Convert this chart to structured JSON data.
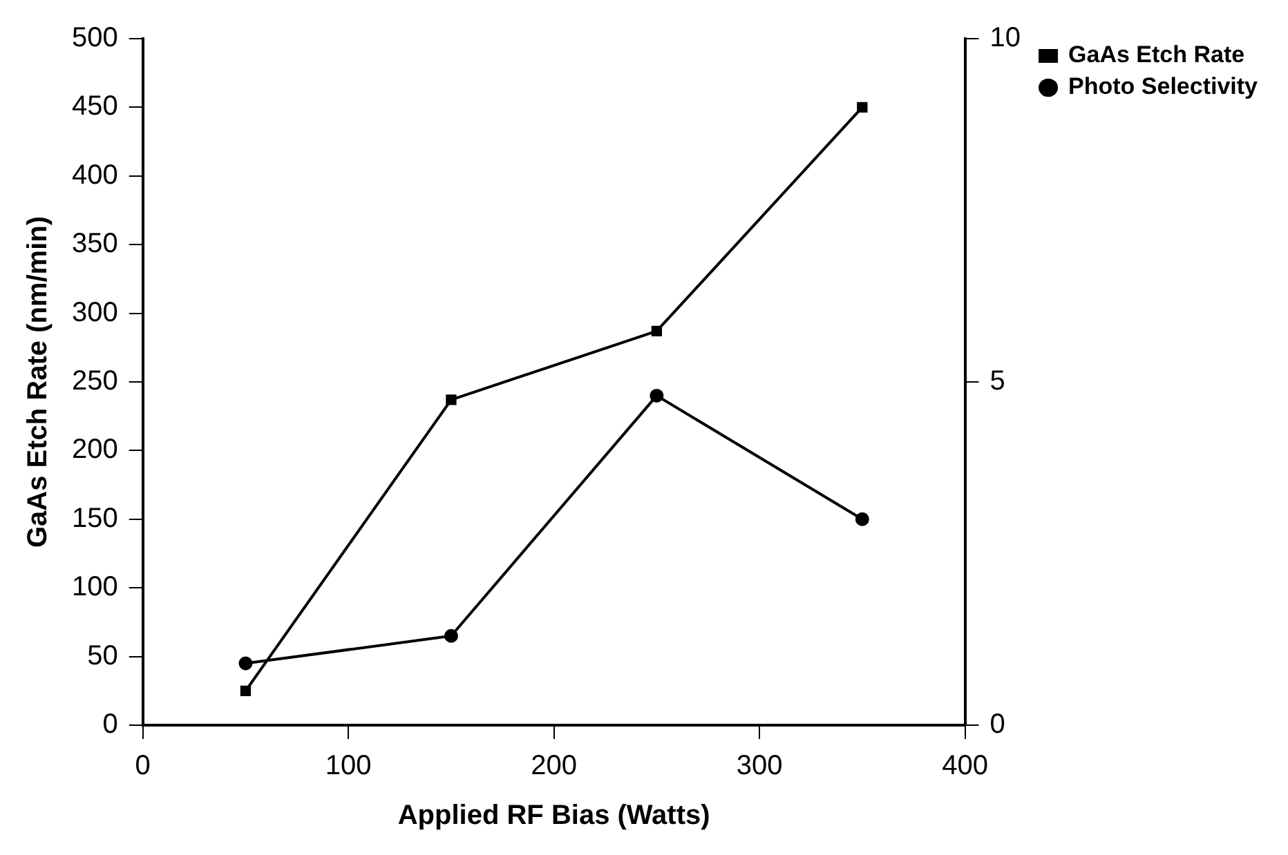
{
  "chart_data": {
    "type": "line",
    "xlabel": "Applied RF Bias (Watts)",
    "ylabel": "GaAs Etch Rate (nm/min)",
    "x": [
      50,
      150,
      250,
      350
    ],
    "series": [
      {
        "name": "GaAs Etch Rate",
        "color": "#000000",
        "marker": "square",
        "values": [
          25,
          237,
          287,
          450
        ]
      },
      {
        "name": "Photo Selectivity",
        "color": "#000000",
        "marker": "circle",
        "axis": "y2",
        "values": [
          0.9,
          1.3,
          4.8,
          3.0
        ]
      }
    ],
    "xlim": [
      0,
      400
    ],
    "xticks": [
      0,
      100,
      200,
      300,
      400
    ],
    "ylim": [
      0,
      500
    ],
    "yticks": [
      0,
      50,
      100,
      150,
      200,
      250,
      300,
      350,
      400,
      450,
      500
    ],
    "y2lim": [
      0,
      10
    ],
    "y2ticks": [
      0,
      5,
      10
    ],
    "grid": false,
    "legend": "top right",
    "line_style": "solid"
  }
}
